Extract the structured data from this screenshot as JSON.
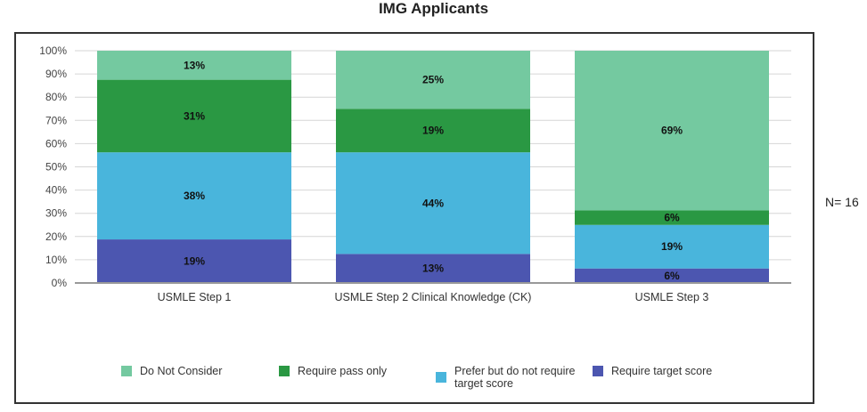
{
  "chart_data": {
    "type": "bar",
    "stacked": true,
    "title": "IMG Applicants",
    "categories": [
      "USMLE Step 1",
      "USMLE Step 2 Clinical Knowledge (CK)",
      "USMLE Step 3"
    ],
    "series": [
      {
        "name": "Require target score",
        "color": "#4c56b0",
        "values": [
          18.75,
          12.5,
          6.25
        ],
        "labels": [
          "19%",
          "13%",
          "6%"
        ]
      },
      {
        "name": "Prefer but do not require target score",
        "color": "#49b5dc",
        "values": [
          37.5,
          43.75,
          18.75
        ],
        "labels": [
          "38%",
          "44%",
          "19%"
        ]
      },
      {
        "name": "Require pass only",
        "color": "#2a9843",
        "values": [
          31.25,
          18.75,
          6.25
        ],
        "labels": [
          "31%",
          "19%",
          "6%"
        ]
      },
      {
        "name": "Do Not Consider",
        "color": "#74c9a0",
        "values": [
          12.5,
          25,
          68.75
        ],
        "labels": [
          "13%",
          "25%",
          "69%"
        ]
      }
    ],
    "yticks": [
      "0%",
      "10%",
      "20%",
      "30%",
      "40%",
      "50%",
      "60%",
      "70%",
      "80%",
      "90%",
      "100%"
    ],
    "ylim": [
      0,
      100
    ],
    "grid": true,
    "legend_position": "bottom",
    "annotation": "N= 16"
  }
}
